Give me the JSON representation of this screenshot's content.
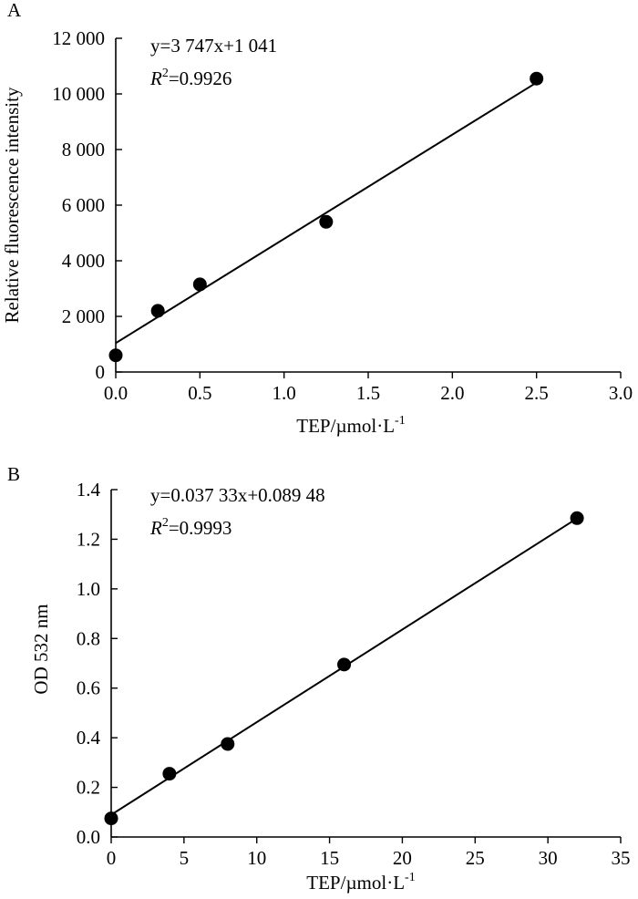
{
  "chart_data": [
    {
      "panel_label": "A",
      "type": "scatter",
      "xlabel": "TEP/µmol·L",
      "xlabel_sup": "-1",
      "ylabel": "Relative fluorescence intensity",
      "xlim": [
        0,
        3
      ],
      "ylim": [
        0,
        12000
      ],
      "x_ticks": [
        0,
        0.5,
        1,
        1.5,
        2,
        2.5,
        3
      ],
      "x_tick_labels": [
        "0.0",
        "0.5",
        "1.0",
        "1.5",
        "2.0",
        "2.5",
        "3.0"
      ],
      "y_ticks": [
        0,
        2000,
        4000,
        6000,
        8000,
        10000,
        12000
      ],
      "y_tick_labels": [
        "0",
        "2 000",
        "4 000",
        "6 000",
        "8 000",
        "10 000",
        "12 000"
      ],
      "points": [
        {
          "x": 0,
          "y": 600
        },
        {
          "x": 0.25,
          "y": 2200
        },
        {
          "x": 0.5,
          "y": 3150
        },
        {
          "x": 1.25,
          "y": 5400
        },
        {
          "x": 2.5,
          "y": 10550
        }
      ],
      "fit": {
        "slope": 3747,
        "intercept": 1041
      },
      "equation": "y=3 747x+1 041",
      "r2_label": "R",
      "r2_sup": "2",
      "r2_value": "=0.9926"
    },
    {
      "panel_label": "B",
      "type": "scatter",
      "xlabel": "TEP/µmol·L",
      "xlabel_sup": "-1",
      "ylabel": "OD 532 nm",
      "xlim": [
        0,
        35
      ],
      "ylim": [
        0,
        1.4
      ],
      "x_ticks": [
        0,
        5,
        10,
        15,
        20,
        25,
        30,
        35
      ],
      "x_tick_labels": [
        "0",
        "5",
        "10",
        "15",
        "20",
        "25",
        "30",
        "35"
      ],
      "y_ticks": [
        0,
        0.2,
        0.4,
        0.6,
        0.8,
        1.0,
        1.2,
        1.4
      ],
      "y_tick_labels": [
        "0.0",
        "0.2",
        "0.4",
        "0.6",
        "0.8",
        "1.0",
        "1.2",
        "1.4"
      ],
      "points": [
        {
          "x": 0,
          "y": 0.075
        },
        {
          "x": 4,
          "y": 0.255
        },
        {
          "x": 8,
          "y": 0.375
        },
        {
          "x": 16,
          "y": 0.695
        },
        {
          "x": 32,
          "y": 1.285
        }
      ],
      "fit": {
        "slope": 0.03733,
        "intercept": 0.08948
      },
      "equation": "y=0.037 33x+0.089 48",
      "r2_label": "R",
      "r2_sup": "2",
      "r2_value": "=0.9993"
    }
  ]
}
